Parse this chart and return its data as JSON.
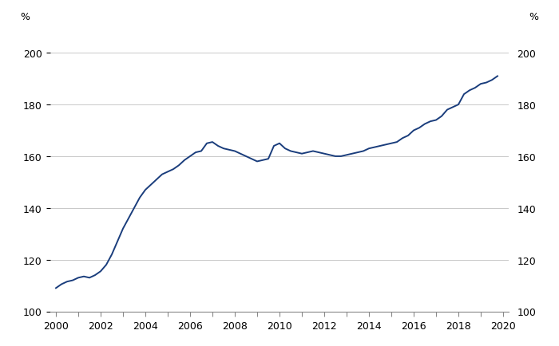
{
  "ylabel_left": "%",
  "ylabel_right": "%",
  "line_color": "#1a3d7c",
  "line_width": 1.4,
  "background_color": "#ffffff",
  "grid_color": "#c8c8c8",
  "ylim": [
    100,
    210
  ],
  "yticks": [
    100,
    120,
    140,
    160,
    180,
    200
  ],
  "xlim": [
    1999.75,
    2020.25
  ],
  "xticks": [
    2000,
    2002,
    2004,
    2006,
    2008,
    2010,
    2012,
    2014,
    2016,
    2018,
    2020
  ],
  "xminorticks": [
    2001,
    2003,
    2005,
    2007,
    2009,
    2011,
    2013,
    2015,
    2017,
    2019
  ],
  "data": {
    "x": [
      2000.0,
      2000.25,
      2000.5,
      2000.75,
      2001.0,
      2001.25,
      2001.5,
      2001.75,
      2002.0,
      2002.25,
      2002.5,
      2002.75,
      2003.0,
      2003.25,
      2003.5,
      2003.75,
      2004.0,
      2004.25,
      2004.5,
      2004.75,
      2005.0,
      2005.25,
      2005.5,
      2005.75,
      2006.0,
      2006.25,
      2006.5,
      2006.75,
      2007.0,
      2007.25,
      2007.5,
      2007.75,
      2008.0,
      2008.25,
      2008.5,
      2008.75,
      2009.0,
      2009.25,
      2009.5,
      2009.75,
      2010.0,
      2010.25,
      2010.5,
      2010.75,
      2011.0,
      2011.25,
      2011.5,
      2011.75,
      2012.0,
      2012.25,
      2012.5,
      2012.75,
      2013.0,
      2013.25,
      2013.5,
      2013.75,
      2014.0,
      2014.25,
      2014.5,
      2014.75,
      2015.0,
      2015.25,
      2015.5,
      2015.75,
      2016.0,
      2016.25,
      2016.5,
      2016.75,
      2017.0,
      2017.25,
      2017.5,
      2017.75,
      2018.0,
      2018.25,
      2018.5,
      2018.75,
      2019.0,
      2019.25,
      2019.5,
      2019.75
    ],
    "y": [
      109.0,
      110.5,
      111.5,
      112.0,
      113.0,
      113.5,
      113.0,
      114.0,
      115.5,
      118.0,
      122.0,
      127.0,
      132.0,
      136.0,
      140.0,
      144.0,
      147.0,
      149.0,
      151.0,
      153.0,
      154.0,
      155.0,
      156.5,
      158.5,
      160.0,
      161.5,
      162.0,
      165.0,
      165.5,
      164.0,
      163.0,
      162.5,
      162.0,
      161.0,
      160.0,
      159.0,
      158.0,
      158.5,
      159.0,
      164.0,
      165.0,
      163.0,
      162.0,
      161.5,
      161.0,
      161.5,
      162.0,
      161.5,
      161.0,
      160.5,
      160.0,
      160.0,
      160.5,
      161.0,
      161.5,
      162.0,
      163.0,
      163.5,
      164.0,
      164.5,
      165.0,
      165.5,
      167.0,
      168.0,
      170.0,
      171.0,
      172.5,
      173.5,
      174.0,
      175.5,
      178.0,
      179.0,
      180.0,
      184.0,
      185.5,
      186.5,
      188.0,
      188.5,
      189.5,
      191.0
    ]
  }
}
